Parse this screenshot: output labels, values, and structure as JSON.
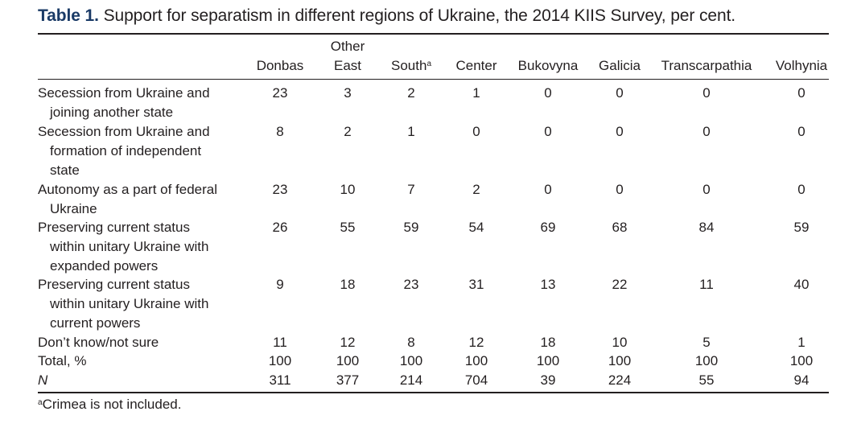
{
  "caption": {
    "label": "Table 1.",
    "title": "Support for separatism in different regions of Ukraine, the 2014 KIIS Survey, per cent."
  },
  "columns": [
    {
      "line1": "",
      "line2": "Donbas",
      "sup": ""
    },
    {
      "line1": "Other",
      "line2": "East",
      "sup": ""
    },
    {
      "line1": "",
      "line2": "South",
      "sup": "a"
    },
    {
      "line1": "",
      "line2": "Center",
      "sup": ""
    },
    {
      "line1": "",
      "line2": "Bukovyna",
      "sup": ""
    },
    {
      "line1": "",
      "line2": "Galicia",
      "sup": ""
    },
    {
      "line1": "",
      "line2": "Transcarpathia",
      "sup": ""
    },
    {
      "line1": "",
      "line2": "Volhynia",
      "sup": ""
    }
  ],
  "rows": [
    {
      "lines": [
        "Secession from Ukraine and",
        "joining another state"
      ],
      "italic": false,
      "values": [
        "23",
        "3",
        "2",
        "1",
        "0",
        "0",
        "0",
        "0"
      ]
    },
    {
      "lines": [
        "Secession from Ukraine and",
        "formation of independent",
        "state"
      ],
      "italic": false,
      "values": [
        "8",
        "2",
        "1",
        "0",
        "0",
        "0",
        "0",
        "0"
      ]
    },
    {
      "lines": [
        "Autonomy as a part of federal",
        "Ukraine"
      ],
      "italic": false,
      "values": [
        "23",
        "10",
        "7",
        "2",
        "0",
        "0",
        "0",
        "0"
      ]
    },
    {
      "lines": [
        "Preserving current status",
        "within unitary Ukraine with",
        "expanded powers"
      ],
      "italic": false,
      "values": [
        "26",
        "55",
        "59",
        "54",
        "69",
        "68",
        "84",
        "59"
      ]
    },
    {
      "lines": [
        "Preserving current status",
        "within unitary Ukraine with",
        "current powers"
      ],
      "italic": false,
      "values": [
        "9",
        "18",
        "23",
        "31",
        "13",
        "22",
        "11",
        "40"
      ]
    },
    {
      "lines": [
        "Don’t know/not sure"
      ],
      "italic": false,
      "values": [
        "11",
        "12",
        "8",
        "12",
        "18",
        "10",
        "5",
        "1"
      ]
    },
    {
      "lines": [
        "Total, %"
      ],
      "italic": false,
      "values": [
        "100",
        "100",
        "100",
        "100",
        "100",
        "100",
        "100",
        "100"
      ]
    },
    {
      "lines": [
        "N"
      ],
      "italic": true,
      "values": [
        "311",
        "377",
        "214",
        "704",
        "39",
        "224",
        "55",
        "94"
      ]
    }
  ],
  "footnote": {
    "marker": "a",
    "text": "Crimea is not included."
  }
}
